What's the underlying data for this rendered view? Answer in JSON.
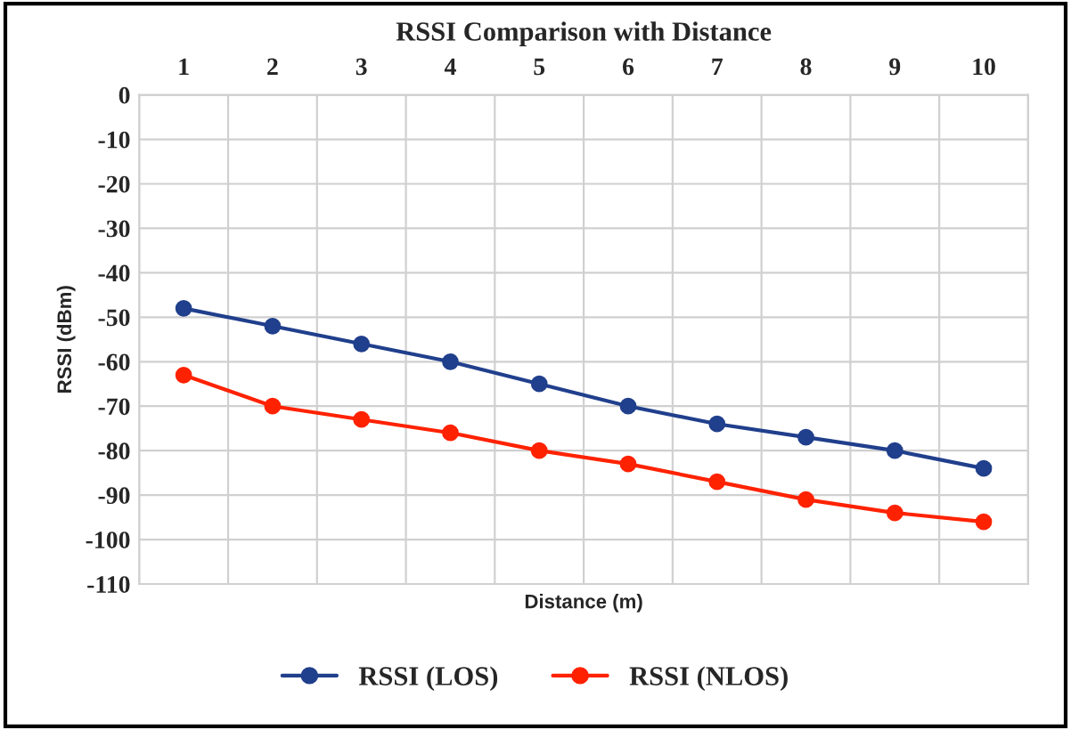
{
  "chart_data": {
    "type": "line",
    "title": "RSSI Comparison with Distance",
    "xlabel": "Distance (m)",
    "ylabel": "RSSI (dBm)",
    "categories": [
      "1",
      "2",
      "3",
      "4",
      "5",
      "6",
      "7",
      "8",
      "9",
      "10"
    ],
    "series": [
      {
        "name": "RSSI (LOS)",
        "color": "#203f8c",
        "values": [
          -48,
          -52,
          -56,
          -60,
          -65,
          -70,
          -74,
          -77,
          -80,
          -84
        ]
      },
      {
        "name": "RSSI (NLOS)",
        "color": "#ff2200",
        "values": [
          -63,
          -70,
          -73,
          -76,
          -80,
          -83,
          -87,
          -91,
          -94,
          -96
        ]
      }
    ],
    "ylim": [
      -110,
      0
    ],
    "yticks": [
      -110,
      -100,
      -90,
      -80,
      -70,
      -60,
      -50,
      -40,
      -30,
      -20,
      -10,
      0
    ],
    "grid": true,
    "legend": "bottom",
    "marker": "circle",
    "line_style": "solid"
  }
}
